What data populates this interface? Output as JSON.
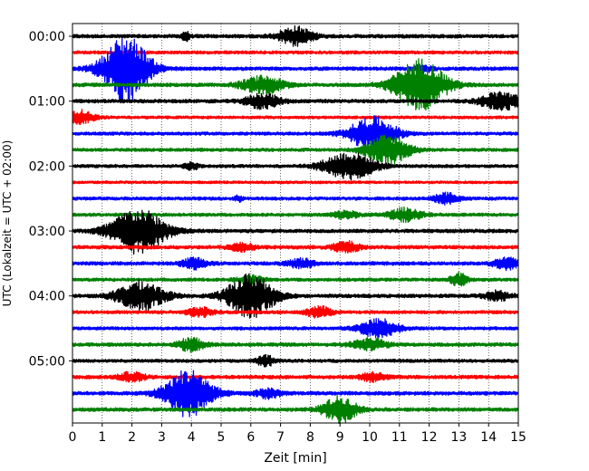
{
  "chart_data": {
    "type": "line",
    "title": "",
    "xlabel": "Zeit  [min]",
    "ylabel": "UTC (Lokalzeit = UTC + 02:00)",
    "xlim": [
      0,
      15
    ],
    "xticks": [
      "0",
      "1",
      "2",
      "3",
      "4",
      "5",
      "6",
      "7",
      "8",
      "9",
      "10",
      "11",
      "12",
      "13",
      "14",
      "15"
    ],
    "yticks": [
      {
        "label": "00:00",
        "trace": 0
      },
      {
        "label": "01:00",
        "trace": 4
      },
      {
        "label": "02:00",
        "trace": 8
      },
      {
        "label": "03:00",
        "trace": 12
      },
      {
        "label": "04:00",
        "trace": 16
      },
      {
        "label": "05:00",
        "trace": 20
      }
    ],
    "trace_interval_minutes": 15,
    "grid": "vertical dotted",
    "colors": [
      "#000000",
      "#ff0000",
      "#0000ff",
      "#008000"
    ],
    "traces": [
      {
        "start": "00:00",
        "color": "#000000",
        "noise": 2.0,
        "events": [
          {
            "t": 3.8,
            "amp": 5,
            "w": 0.1
          },
          {
            "t": 7.5,
            "amp": 10,
            "w": 0.4
          }
        ]
      },
      {
        "start": "00:15",
        "color": "#ff0000",
        "noise": 1.8,
        "events": []
      },
      {
        "start": "00:30",
        "color": "#0000ff",
        "noise": 2.0,
        "events": [
          {
            "t": 1.8,
            "amp": 36,
            "w": 0.55
          },
          {
            "t": 11.8,
            "amp": 4,
            "w": 0.2
          }
        ]
      },
      {
        "start": "00:45",
        "color": "#008000",
        "noise": 2.0,
        "events": [
          {
            "t": 6.4,
            "amp": 9,
            "w": 0.5
          },
          {
            "t": 11.7,
            "amp": 28,
            "w": 0.6
          }
        ]
      },
      {
        "start": "01:00",
        "color": "#000000",
        "noise": 2.0,
        "events": [
          {
            "t": 6.4,
            "amp": 8,
            "w": 0.4
          },
          {
            "t": 14.4,
            "amp": 10,
            "w": 0.45
          }
        ]
      },
      {
        "start": "01:15",
        "color": "#ff0000",
        "noise": 1.6,
        "events": [
          {
            "t": 0.2,
            "amp": 8,
            "w": 0.35
          }
        ]
      },
      {
        "start": "01:30",
        "color": "#0000ff",
        "noise": 1.8,
        "events": [
          {
            "t": 10.1,
            "amp": 18,
            "w": 0.55
          }
        ]
      },
      {
        "start": "01:45",
        "color": "#008000",
        "noise": 1.8,
        "events": [
          {
            "t": 10.6,
            "amp": 16,
            "w": 0.5
          }
        ]
      },
      {
        "start": "02:00",
        "color": "#000000",
        "noise": 1.8,
        "events": [
          {
            "t": 4.0,
            "amp": 5,
            "w": 0.15
          },
          {
            "t": 9.3,
            "amp": 15,
            "w": 0.6
          }
        ]
      },
      {
        "start": "02:15",
        "color": "#ff0000",
        "noise": 1.5,
        "events": []
      },
      {
        "start": "02:30",
        "color": "#0000ff",
        "noise": 1.8,
        "events": [
          {
            "t": 5.6,
            "amp": 3,
            "w": 0.1
          },
          {
            "t": 12.6,
            "amp": 6,
            "w": 0.3
          }
        ]
      },
      {
        "start": "02:45",
        "color": "#008000",
        "noise": 1.8,
        "events": [
          {
            "t": 9.2,
            "amp": 4,
            "w": 0.3
          },
          {
            "t": 11.2,
            "amp": 7,
            "w": 0.4
          }
        ]
      },
      {
        "start": "03:00",
        "color": "#000000",
        "noise": 2.0,
        "events": [
          {
            "t": 2.2,
            "amp": 24,
            "w": 0.65
          }
        ]
      },
      {
        "start": "03:15",
        "color": "#ff0000",
        "noise": 2.0,
        "events": [
          {
            "t": 5.7,
            "amp": 4,
            "w": 0.3
          },
          {
            "t": 9.2,
            "amp": 6,
            "w": 0.3
          }
        ]
      },
      {
        "start": "03:30",
        "color": "#0000ff",
        "noise": 2.0,
        "events": [
          {
            "t": 4.1,
            "amp": 6,
            "w": 0.3
          },
          {
            "t": 7.7,
            "amp": 5,
            "w": 0.3
          },
          {
            "t": 14.6,
            "amp": 6,
            "w": 0.3
          }
        ]
      },
      {
        "start": "03:45",
        "color": "#008000",
        "noise": 1.8,
        "events": [
          {
            "t": 6.0,
            "amp": 4,
            "w": 0.3
          },
          {
            "t": 13.0,
            "amp": 7,
            "w": 0.2
          }
        ]
      },
      {
        "start": "04:00",
        "color": "#000000",
        "noise": 2.0,
        "events": [
          {
            "t": 2.3,
            "amp": 16,
            "w": 0.55
          },
          {
            "t": 6.0,
            "amp": 24,
            "w": 0.55
          },
          {
            "t": 14.3,
            "amp": 5,
            "w": 0.3
          }
        ]
      },
      {
        "start": "04:15",
        "color": "#ff0000",
        "noise": 1.8,
        "events": [
          {
            "t": 4.3,
            "amp": 5,
            "w": 0.3
          },
          {
            "t": 8.3,
            "amp": 6,
            "w": 0.3
          }
        ]
      },
      {
        "start": "04:30",
        "color": "#0000ff",
        "noise": 1.8,
        "events": [
          {
            "t": 10.3,
            "amp": 10,
            "w": 0.45
          }
        ]
      },
      {
        "start": "04:45",
        "color": "#008000",
        "noise": 2.0,
        "events": [
          {
            "t": 4.0,
            "amp": 7,
            "w": 0.3
          },
          {
            "t": 10.0,
            "amp": 6,
            "w": 0.4
          }
        ]
      },
      {
        "start": "05:00",
        "color": "#000000",
        "noise": 1.8,
        "events": [
          {
            "t": 6.5,
            "amp": 6,
            "w": 0.2
          }
        ]
      },
      {
        "start": "05:15",
        "color": "#ff0000",
        "noise": 2.0,
        "events": [
          {
            "t": 2.0,
            "amp": 5,
            "w": 0.3
          },
          {
            "t": 10.1,
            "amp": 5,
            "w": 0.3
          }
        ]
      },
      {
        "start": "05:30",
        "color": "#0000ff",
        "noise": 2.0,
        "events": [
          {
            "t": 3.9,
            "amp": 26,
            "w": 0.55
          },
          {
            "t": 6.6,
            "amp": 5,
            "w": 0.3
          }
        ]
      },
      {
        "start": "05:45",
        "color": "#008000",
        "noise": 2.0,
        "events": [
          {
            "t": 9.0,
            "amp": 14,
            "w": 0.4
          }
        ]
      }
    ]
  }
}
